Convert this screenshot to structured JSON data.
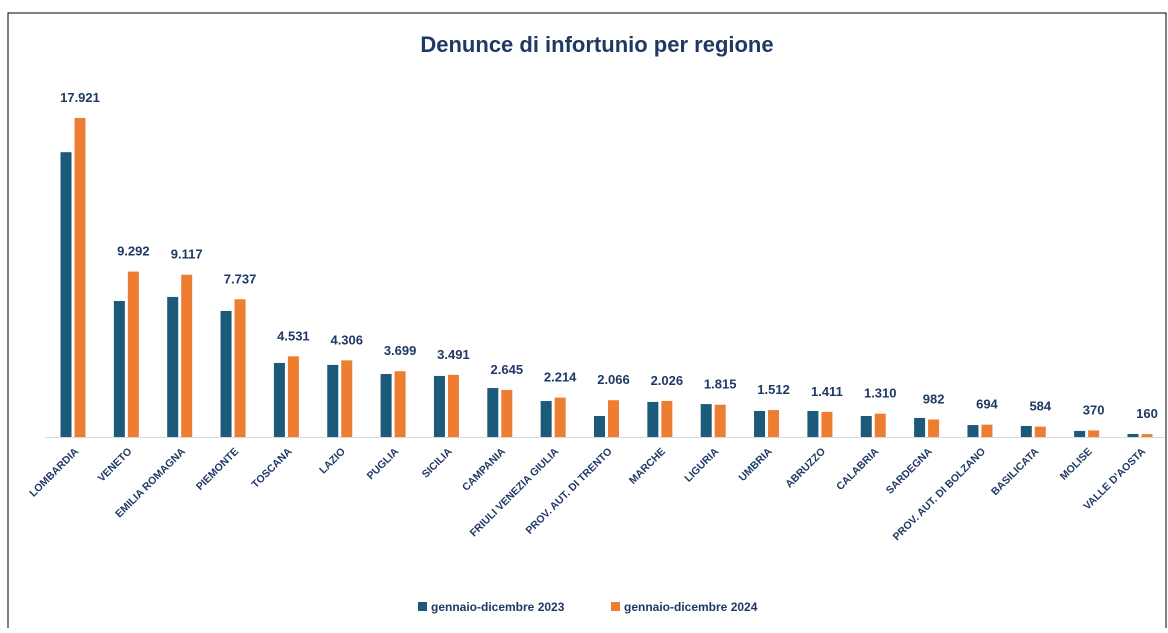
{
  "chart_data": {
    "type": "bar",
    "title": "Denunce di infortunio per regione",
    "categories": [
      "LOMBARDIA",
      "VENETO",
      "EMILIA ROMAGNA",
      "PIEMONTE",
      "TOSCANA",
      "LAZIO",
      "PUGLIA",
      "SICILIA",
      "CAMPANIA",
      "FRIULI VENEZIA GIULIA",
      "PROV. AUT. DI TRENTO",
      "MARCHE",
      "LIGURIA",
      "UMBRIA",
      "ABRUZZO",
      "CALABRIA",
      "SARDEGNA",
      "PROV. AUT. DI BOLZANO",
      "BASILICATA",
      "MOLISE",
      "VALLE D'AOSTA"
    ],
    "series": [
      {
        "name": "gennaio-dicembre 2023",
        "color": "#1b5a78",
        "values": [
          16000,
          7640,
          7870,
          7080,
          4160,
          4050,
          3540,
          3430,
          2750,
          2020,
          1180,
          1970,
          1850,
          1460,
          1460,
          1180,
          1070,
          670,
          620,
          340,
          170
        ]
      },
      {
        "name": "gennaio-dicembre 2024",
        "color": "#ed7d31",
        "values": [
          17921,
          9292,
          9117,
          7737,
          4531,
          4306,
          3699,
          3491,
          2645,
          2214,
          2066,
          2026,
          1815,
          1512,
          1411,
          1310,
          982,
          694,
          584,
          370,
          160
        ],
        "value_labels": [
          "17.921",
          "9.292",
          "9.117",
          "7.737",
          "4.531",
          "4.306",
          "3.699",
          "3.491",
          "2.645",
          "2.214",
          "2.066",
          "2.026",
          "1.815",
          "1.512",
          "1.411",
          "1.310",
          "982",
          "694",
          "584",
          "370",
          "160"
        ]
      }
    ],
    "legend": "bottom"
  }
}
